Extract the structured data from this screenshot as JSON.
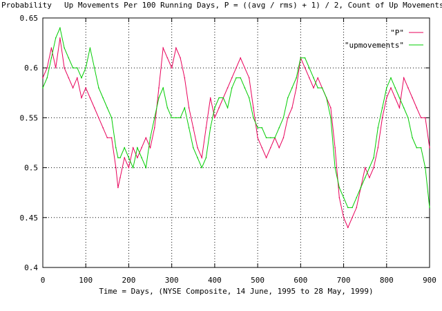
{
  "chart_data": {
    "type": "line",
    "title": "Up Movements Per 100 Running Days, P = ((avg / rms) + 1) / 2, Count of Up Movements",
    "ylabel": "Probability",
    "xlabel": "Time = Days, (NYSE Composite, 14 June, 1995 to 28 May, 1999)",
    "xlim": [
      0,
      900
    ],
    "ylim": [
      0.4,
      0.65
    ],
    "x_ticks": [
      "0",
      "100",
      "200",
      "300",
      "400",
      "500",
      "600",
      "700",
      "800",
      "900"
    ],
    "y_ticks": [
      "0.4",
      "0.45",
      "0.5",
      "0.55",
      "0.6",
      "0.65"
    ],
    "grid": true,
    "legend_position": "top-right",
    "series": [
      {
        "name": "\"P\"",
        "color": "#e8005a",
        "x": [
          0,
          10,
          20,
          30,
          40,
          50,
          60,
          70,
          80,
          90,
          100,
          110,
          120,
          130,
          140,
          150,
          160,
          170,
          175,
          180,
          190,
          200,
          210,
          220,
          230,
          240,
          250,
          260,
          270,
          280,
          290,
          300,
          310,
          320,
          330,
          340,
          350,
          360,
          370,
          380,
          390,
          400,
          410,
          420,
          430,
          440,
          450,
          460,
          470,
          480,
          490,
          500,
          510,
          520,
          530,
          540,
          550,
          560,
          570,
          580,
          590,
          600,
          610,
          620,
          630,
          640,
          650,
          660,
          670,
          680,
          690,
          700,
          710,
          720,
          730,
          740,
          750,
          760,
          770,
          780,
          790,
          800,
          810,
          820,
          830,
          840,
          850,
          860,
          870,
          880,
          890,
          900
        ],
        "values": [
          0.59,
          0.6,
          0.62,
          0.6,
          0.63,
          0.6,
          0.59,
          0.58,
          0.59,
          0.57,
          0.58,
          0.57,
          0.56,
          0.55,
          0.54,
          0.53,
          0.53,
          0.5,
          0.48,
          0.49,
          0.51,
          0.5,
          0.52,
          0.51,
          0.52,
          0.53,
          0.52,
          0.54,
          0.58,
          0.62,
          0.61,
          0.6,
          0.62,
          0.61,
          0.59,
          0.56,
          0.54,
          0.52,
          0.51,
          0.54,
          0.57,
          0.55,
          0.56,
          0.57,
          0.58,
          0.59,
          0.6,
          0.61,
          0.6,
          0.59,
          0.56,
          0.53,
          0.52,
          0.51,
          0.52,
          0.53,
          0.52,
          0.53,
          0.55,
          0.56,
          0.58,
          0.61,
          0.6,
          0.59,
          0.58,
          0.59,
          0.58,
          0.57,
          0.56,
          0.52,
          0.47,
          0.45,
          0.44,
          0.45,
          0.46,
          0.48,
          0.5,
          0.49,
          0.5,
          0.52,
          0.55,
          0.57,
          0.58,
          0.57,
          0.56,
          0.59,
          0.58,
          0.57,
          0.56,
          0.55,
          0.55,
          0.52
        ]
      },
      {
        "name": "\"upmovements\"",
        "color": "#00cc00",
        "x": [
          0,
          10,
          20,
          30,
          40,
          50,
          60,
          70,
          80,
          90,
          100,
          110,
          120,
          130,
          140,
          150,
          160,
          170,
          175,
          180,
          190,
          200,
          210,
          220,
          230,
          240,
          250,
          260,
          270,
          280,
          290,
          300,
          310,
          320,
          330,
          340,
          350,
          360,
          370,
          380,
          390,
          400,
          410,
          420,
          430,
          440,
          450,
          460,
          470,
          480,
          490,
          500,
          510,
          520,
          530,
          540,
          550,
          560,
          570,
          580,
          590,
          600,
          610,
          620,
          630,
          640,
          650,
          660,
          670,
          680,
          690,
          700,
          710,
          720,
          730,
          740,
          750,
          760,
          770,
          780,
          790,
          800,
          810,
          820,
          830,
          840,
          850,
          860,
          870,
          880,
          890,
          900
        ],
        "values": [
          0.58,
          0.59,
          0.61,
          0.63,
          0.64,
          0.62,
          0.61,
          0.6,
          0.6,
          0.59,
          0.6,
          0.62,
          0.6,
          0.58,
          0.57,
          0.56,
          0.55,
          0.52,
          0.51,
          0.51,
          0.52,
          0.51,
          0.5,
          0.52,
          0.51,
          0.5,
          0.53,
          0.55,
          0.57,
          0.58,
          0.56,
          0.55,
          0.55,
          0.55,
          0.56,
          0.54,
          0.52,
          0.51,
          0.5,
          0.51,
          0.54,
          0.56,
          0.57,
          0.57,
          0.56,
          0.58,
          0.59,
          0.59,
          0.58,
          0.57,
          0.55,
          0.54,
          0.54,
          0.53,
          0.53,
          0.53,
          0.54,
          0.55,
          0.57,
          0.58,
          0.59,
          0.61,
          0.61,
          0.6,
          0.59,
          0.58,
          0.58,
          0.57,
          0.55,
          0.5,
          0.48,
          0.47,
          0.46,
          0.46,
          0.47,
          0.48,
          0.49,
          0.5,
          0.51,
          0.54,
          0.56,
          0.58,
          0.59,
          0.58,
          0.57,
          0.56,
          0.55,
          0.53,
          0.52,
          0.52,
          0.5,
          0.46
        ]
      }
    ]
  }
}
